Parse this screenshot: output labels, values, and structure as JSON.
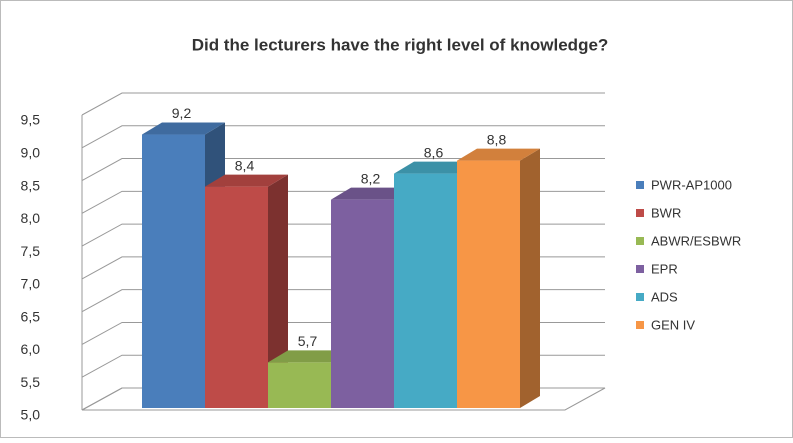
{
  "chart_data": {
    "type": "bar",
    "title": "Did the lecturers have the right level of knowledge?",
    "ylim": [
      5,
      9.5
    ],
    "yticks": [
      {
        "value": 5,
        "label": "5,0"
      },
      {
        "value": 5.5,
        "label": "5,5"
      },
      {
        "value": 6,
        "label": "6,0"
      },
      {
        "value": 6.5,
        "label": "6,5"
      },
      {
        "value": 7,
        "label": "7,0"
      },
      {
        "value": 7.5,
        "label": "7,5"
      },
      {
        "value": 8,
        "label": "8,0"
      },
      {
        "value": 8.5,
        "label": "8,5"
      },
      {
        "value": 9,
        "label": "9,0"
      },
      {
        "value": 9.5,
        "label": "9,5"
      }
    ],
    "grid": true,
    "legend": "right",
    "series": [
      {
        "name": "PWR-AP1000",
        "color": "#4a7ebb",
        "values": [
          9.2
        ],
        "value_labels": [
          "9,2"
        ]
      },
      {
        "name": "BWR",
        "color": "#be4b48",
        "values": [
          8.4
        ],
        "value_labels": [
          "8,4"
        ]
      },
      {
        "name": "ABWR/ESBWR",
        "color": "#98b954",
        "values": [
          5.7
        ],
        "value_labels": [
          "5,7"
        ]
      },
      {
        "name": "EPR",
        "color": "#7d60a0",
        "values": [
          8.2
        ],
        "value_labels": [
          "8,2"
        ]
      },
      {
        "name": "ADS",
        "color": "#46aac5",
        "values": [
          8.6
        ],
        "value_labels": [
          "8,6"
        ]
      },
      {
        "name": "GEN IV",
        "color": "#f79646",
        "values": [
          8.8
        ],
        "value_labels": [
          "8,8"
        ]
      }
    ]
  }
}
